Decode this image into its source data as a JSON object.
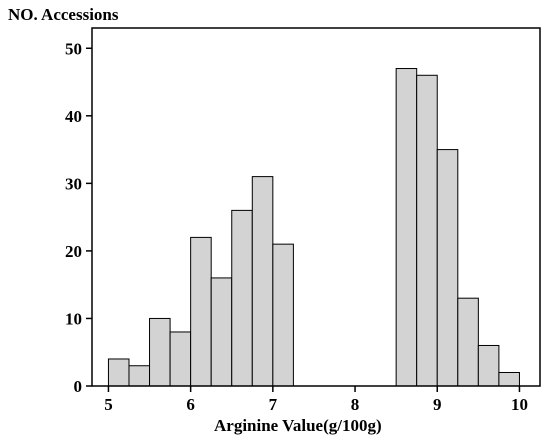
{
  "chart_data": {
    "type": "bar",
    "ylabel": "NO. Accessions",
    "xlabel": "Arginine Value(g/100g)",
    "xlim": [
      4.8,
      10.25
    ],
    "ylim": [
      0,
      53
    ],
    "xticks": [
      "5",
      "6",
      "7",
      "8",
      "9",
      "10"
    ],
    "yticks": [
      "0",
      "10",
      "20",
      "30",
      "40",
      "50"
    ],
    "bin_width": 0.25,
    "bins": [
      {
        "start": 5.0,
        "end": 5.25,
        "value": 4
      },
      {
        "start": 5.25,
        "end": 5.5,
        "value": 3
      },
      {
        "start": 5.5,
        "end": 5.75,
        "value": 10
      },
      {
        "start": 5.75,
        "end": 6.0,
        "value": 8
      },
      {
        "start": 6.0,
        "end": 6.25,
        "value": 22
      },
      {
        "start": 6.25,
        "end": 6.5,
        "value": 16
      },
      {
        "start": 6.5,
        "end": 6.75,
        "value": 26
      },
      {
        "start": 6.75,
        "end": 7.0,
        "value": 31
      },
      {
        "start": 7.0,
        "end": 7.25,
        "value": 21
      },
      {
        "start": 8.5,
        "end": 8.75,
        "value": 47
      },
      {
        "start": 8.75,
        "end": 9.0,
        "value": 46
      },
      {
        "start": 9.0,
        "end": 9.25,
        "value": 35
      },
      {
        "start": 9.25,
        "end": 9.5,
        "value": 13
      },
      {
        "start": 9.5,
        "end": 9.75,
        "value": 6
      },
      {
        "start": 9.75,
        "end": 10.0,
        "value": 2
      }
    ],
    "bar_fill": "#d3d3d3",
    "bar_stroke": "#000000",
    "grid": false,
    "legend": "none"
  }
}
